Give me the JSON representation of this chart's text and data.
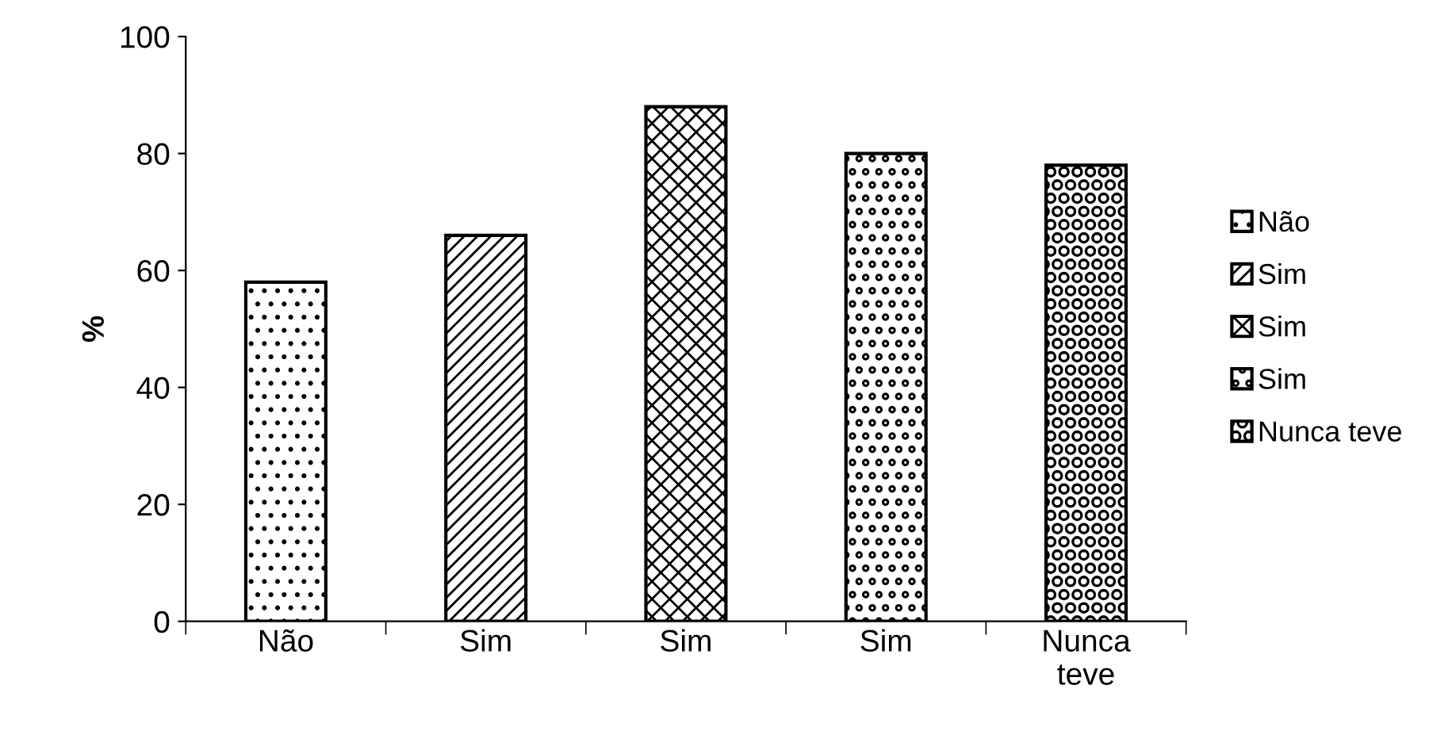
{
  "chart_data": {
    "type": "bar",
    "ylabel": "%",
    "categories": [
      "Não",
      "Sim",
      "Sim",
      "Sim",
      "Nunca teve"
    ],
    "series": [
      {
        "name": "Não",
        "color": "#000000",
        "values": [
          58,
          null,
          null,
          null,
          null
        ]
      },
      {
        "name": "Sim",
        "color": "#000000",
        "values": [
          null,
          66,
          null,
          null,
          null
        ]
      },
      {
        "name": "Sim",
        "color": "#000000",
        "values": [
          null,
          null,
          88,
          null,
          null
        ]
      },
      {
        "name": "Sim",
        "color": "#000000",
        "values": [
          null,
          null,
          null,
          80,
          null
        ]
      },
      {
        "name": "Nunca teve",
        "color": "#000000",
        "values": [
          null,
          null,
          null,
          null,
          78
        ]
      }
    ],
    "ylim": [
      0,
      100
    ],
    "yticks": [
      0,
      20,
      40,
      60,
      80,
      100
    ],
    "legend": "right"
  }
}
